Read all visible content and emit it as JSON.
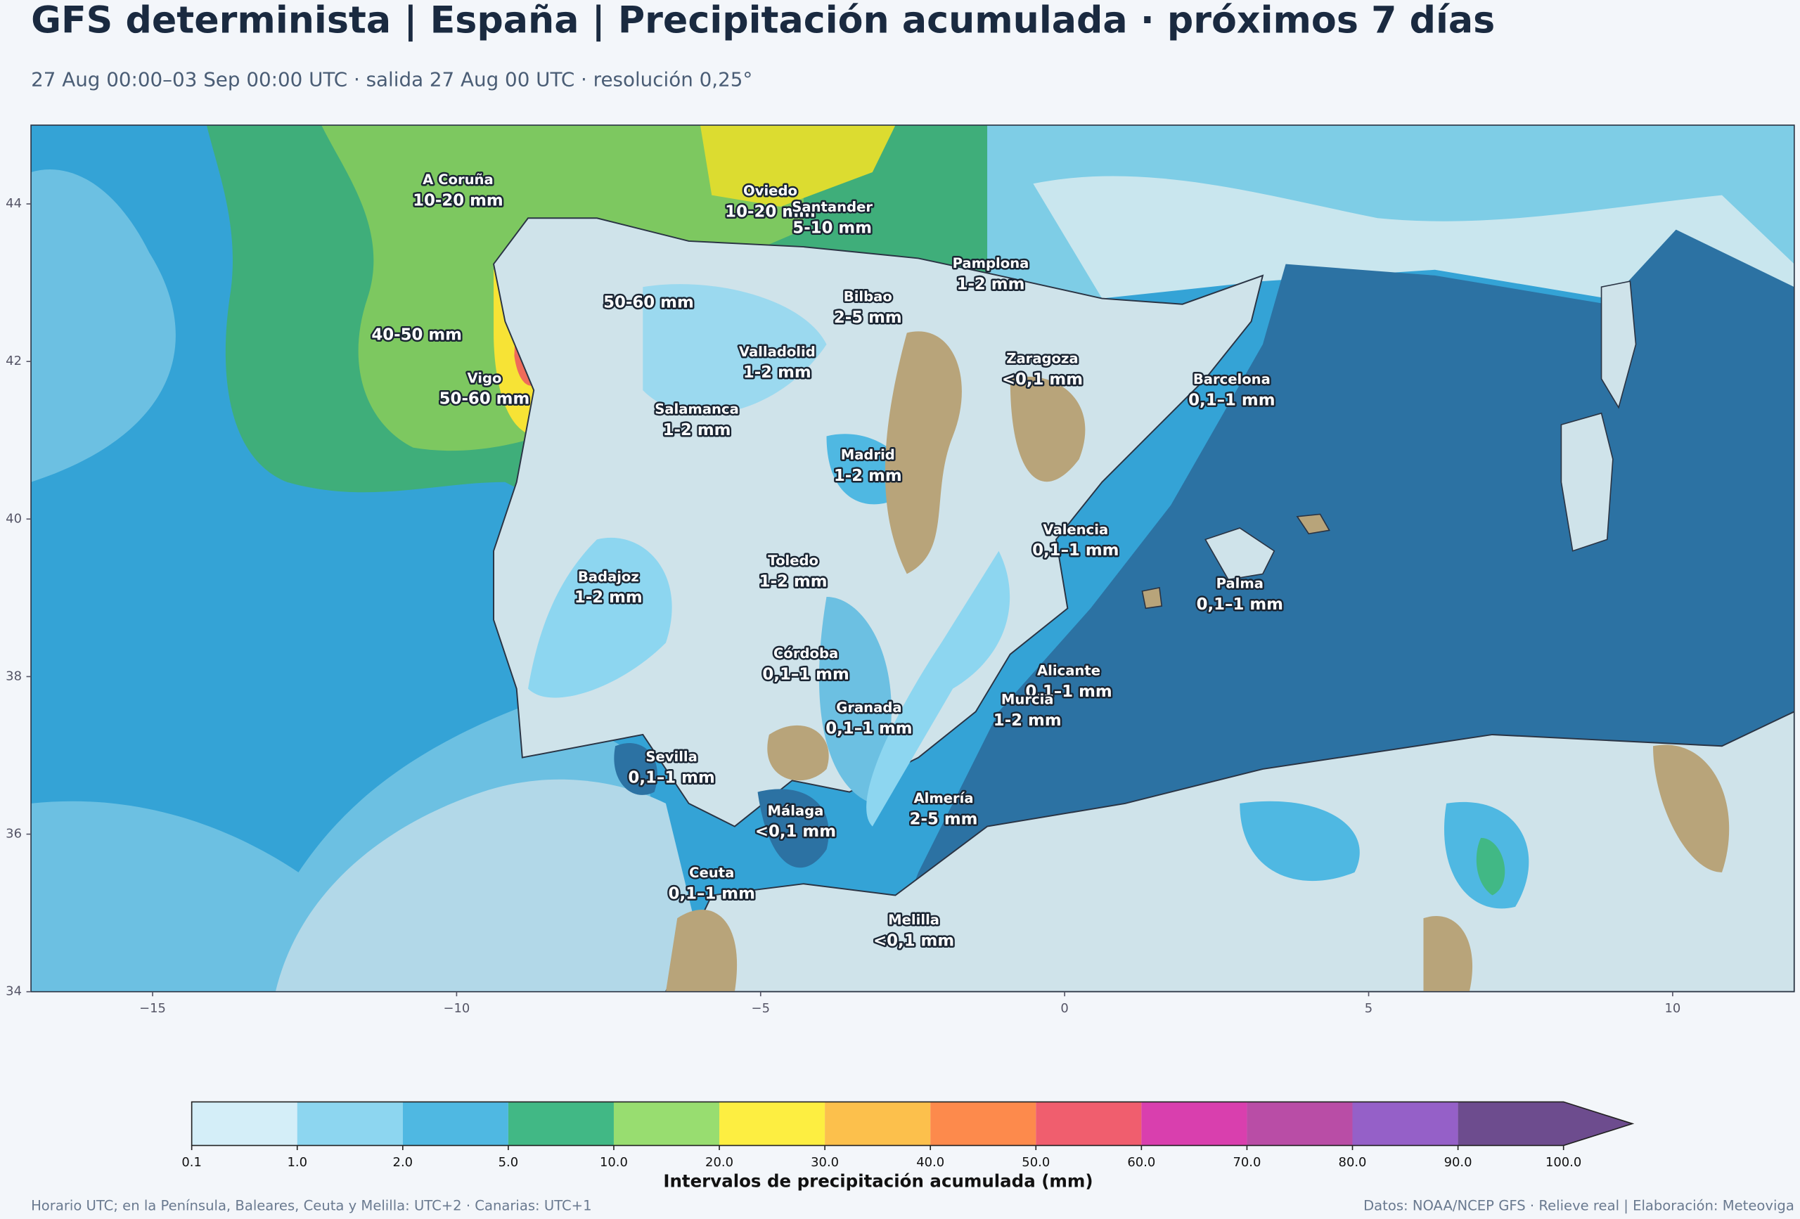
{
  "header": {
    "title": "GFS determinista | España | Precipitación acumulada · próximos 7 días",
    "subtitle": "27 Aug 00:00–03 Sep 00:00 UTC · salida 27 Aug 00 UTC · resolución 0,25°"
  },
  "map": {
    "xlim": [
      -17,
      12
    ],
    "ylim": [
      34,
      45
    ],
    "xticks": [
      {
        "value": -15,
        "label": "−15"
      },
      {
        "value": -10,
        "label": "−10"
      },
      {
        "value": -5,
        "label": "−5"
      },
      0,
      5,
      10
    ],
    "yticks": [
      34,
      36,
      38,
      40,
      42,
      44
    ],
    "labels": [
      {
        "name": "A Coruña",
        "value": "10-20 mm"
      },
      {
        "name": "Oviedo",
        "value": "10-20 mm"
      },
      {
        "name": "Santander",
        "value": "5-10 mm"
      },
      {
        "name": "Pamplona",
        "value": "1-2 mm"
      },
      {
        "name": "Bilbao",
        "value": "2-5 mm"
      },
      {
        "value": "50-60 mm"
      },
      {
        "value": "40-50 mm"
      },
      {
        "name": "Vigo",
        "value": "50-60 mm"
      },
      {
        "name": "Valladolid",
        "value": "1-2 mm"
      },
      {
        "name": "Zaragoza",
        "value": "<0,1 mm"
      },
      {
        "name": "Barcelona",
        "value": "0,1–1 mm"
      },
      {
        "name": "Salamanca",
        "value": "1-2 mm"
      },
      {
        "name": "Madrid",
        "value": "1-2 mm"
      },
      {
        "name": "Valencia",
        "value": "0,1–1 mm"
      },
      {
        "name": "Toledo",
        "value": "1-2 mm"
      },
      {
        "name": "Badajoz",
        "value": "1-2 mm"
      },
      {
        "name": "Palma",
        "value": "0,1–1 mm"
      },
      {
        "name": "Córdoba",
        "value": "0,1–1 mm"
      },
      {
        "name": "Alicante",
        "value": "0,1–1 mm"
      },
      {
        "name": "Granada",
        "value": "0,1–1 mm"
      },
      {
        "name": "Murcia",
        "value": "1-2 mm"
      },
      {
        "name": "Sevilla",
        "value": "0,1–1 mm"
      },
      {
        "name": "Almería",
        "value": "2-5 mm"
      },
      {
        "name": "Málaga",
        "value": "<0,1 mm"
      },
      {
        "name": "Ceuta",
        "value": "0,1–1 mm"
      },
      {
        "name": "Melilla",
        "value": "<0,1 mm"
      }
    ]
  },
  "colorbar": {
    "label": "Intervalos de precipitación acumulada (mm)",
    "bounds": [
      0.1,
      {
        "value": 1,
        "label": "1.0"
      },
      {
        "value": 2,
        "label": "2.0"
      },
      {
        "value": 5,
        "label": "5.0"
      },
      {
        "value": 10,
        "label": "10.0"
      },
      {
        "value": 20,
        "label": "20.0"
      },
      {
        "value": 30,
        "label": "30.0"
      },
      {
        "value": 40,
        "label": "40.0"
      },
      {
        "value": 50,
        "label": "50.0"
      },
      {
        "value": 60,
        "label": "60.0"
      },
      {
        "value": 70,
        "label": "70.0"
      },
      {
        "value": 80,
        "label": "80.0"
      },
      {
        "value": 90,
        "label": "90.0"
      },
      {
        "value": 100,
        "label": "100.0"
      }
    ],
    "colors": [
      "#d4eef8",
      "#8dd6f0",
      "#4fb8e2",
      "#41b885",
      "#98dd70",
      "#fdee41",
      "#fcc04c",
      "#fd8a4c",
      "#f05e6e",
      "#d93fae",
      "#b94da6",
      "#9560c8",
      "#6d4c8e"
    ]
  },
  "footer": {
    "left": "Horario UTC; en la Península, Baleares, Ceuta y Melilla: UTC+2 · Canarias: UTC+1",
    "right": "Datos: NOAA/NCEP GFS · Relieve real | Elaboración: Meteoviga"
  }
}
